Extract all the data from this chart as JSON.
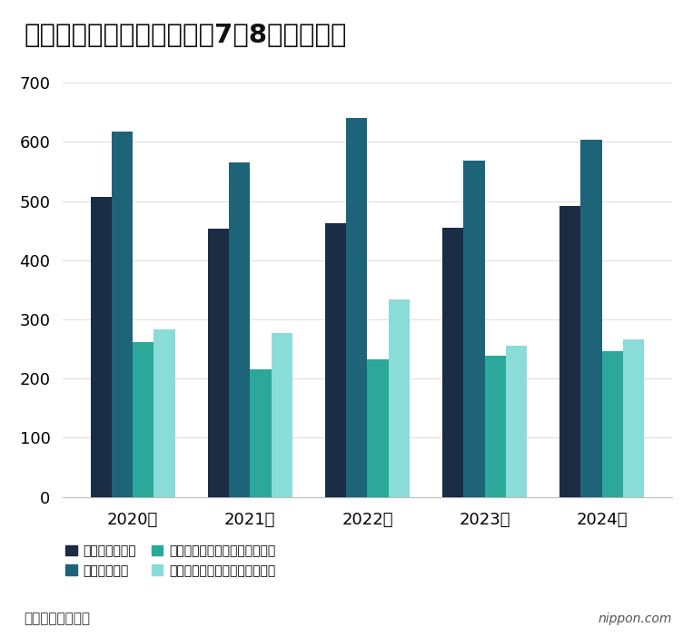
{
  "title": "近年の水難事故発生状況（7～8月）の推移",
  "years": [
    "2020年",
    "2021年",
    "2022年",
    "2023年",
    "2024年"
  ],
  "series": {
    "発生件数（件）": [
      507,
      453,
      462,
      455,
      491
    ],
    "水難者（人）": [
      618,
      566,
      641,
      569,
      604
    ],
    "水難者のうち死者・行方不明者": [
      262,
      215,
      232,
      239,
      246
    ],
    "水難者のうち無事救出された人": [
      283,
      277,
      333,
      255,
      266
    ]
  },
  "colors": {
    "発生件数（件）": "#1b2c45",
    "水難者（人）": "#1e6478",
    "水難者のうち死者・行方不明者": "#2ba89a",
    "水難者のうち無事救出された人": "#8adcd8"
  },
  "ylim": [
    0,
    700
  ],
  "yticks": [
    0,
    100,
    200,
    300,
    400,
    500,
    600,
    700
  ],
  "footnote": "（警察庁まとめ）",
  "background_color": "#ffffff",
  "grid_color": "#e0e0e0",
  "title_fontsize": 21,
  "tick_fontsize": 13,
  "legend_fontsize": 12.5,
  "bar_width": 0.18
}
